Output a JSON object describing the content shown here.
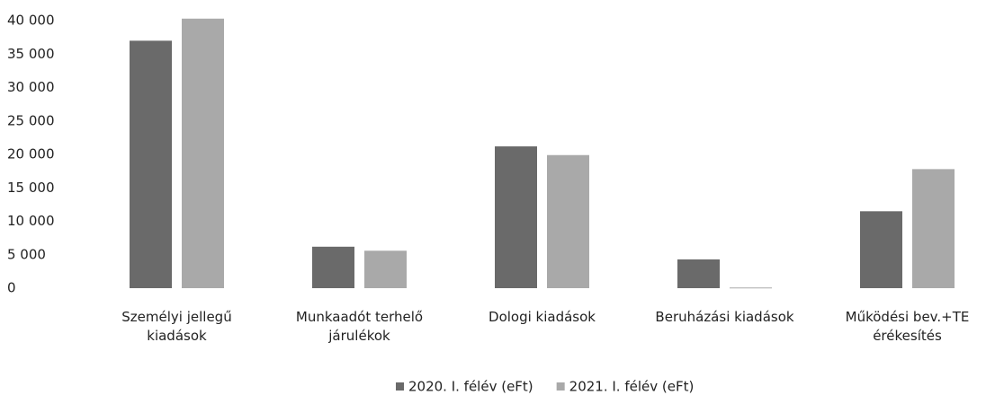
{
  "chart_data": {
    "type": "bar",
    "categories": [
      "Személyi jellegű\nkiadások",
      "Munkaadót terhelő\njárulékok",
      "Dologi kiadások",
      "Beruházási kiadások",
      "Működési bev.+TE\nérékesítés"
    ],
    "series": [
      {
        "name": "2020. I. félév (eFt)",
        "color": "#6a6a6a",
        "values": [
          37000,
          6200,
          21200,
          4300,
          11500
        ]
      },
      {
        "name": "2021. I. félév (eFt)",
        "color": "#a9a9a9",
        "values": [
          40300,
          5600,
          19900,
          100,
          17800
        ]
      }
    ],
    "ylim": [
      0,
      40000
    ],
    "yticks": [
      0,
      {
        "value": 5000,
        "label": "5 000"
      },
      {
        "value": 10000,
        "label": "10 000"
      },
      {
        "value": 15000,
        "label": "15 000"
      },
      {
        "value": 20000,
        "label": "20 000"
      },
      {
        "value": 25000,
        "label": "25 000"
      },
      {
        "value": 30000,
        "label": "30 000"
      },
      {
        "value": 35000,
        "label": "35 000"
      },
      {
        "value": 40000,
        "label": "40 000"
      }
    ],
    "grid": false
  }
}
